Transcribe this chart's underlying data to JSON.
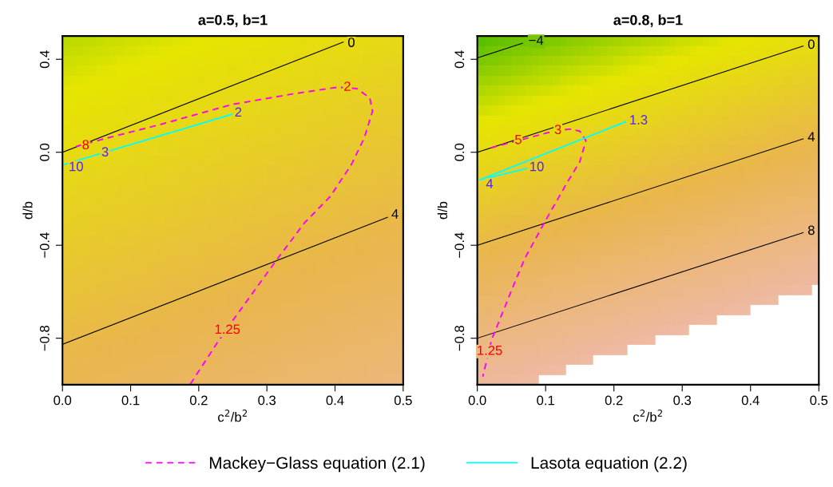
{
  "chart_data": [
    {
      "type": "line",
      "title": "a=0.5, b=1",
      "xlabel": "c$^{2}$/b$^{2}$",
      "ylabel": "d/b",
      "xlim": [
        0,
        0.5
      ],
      "ylim": [
        -1.0,
        0.5
      ],
      "xticks": [
        {
          "value": 0,
          "label": "0.0"
        },
        0.1,
        0.2,
        0.3,
        0.4,
        0.5
      ],
      "yticks": [
        {
          "value": -0.8,
          "label": "−0.8"
        },
        {
          "value": -0.4,
          "label": "−0.4"
        },
        {
          "value": 0,
          "label": "0.0"
        },
        0.4
      ],
      "legend": "bottom",
      "grid": false,
      "series": [
        {
          "color": "#000000",
          "x": [
            0,
            0.412
          ],
          "values": [
            0.0,
            0.474
          ]
        },
        {
          "color": "#000000",
          "x": [
            0,
            0.477
          ],
          "values": [
            -0.826,
            -0.28
          ]
        },
        {
          "name": "Mackey−Glass equation (2.1)",
          "color": "#ff00ff",
          "line_style": "dashed",
          "x": [
            0.02,
            0.064,
            0.143,
            0.248,
            0.338,
            0.404,
            0.432,
            0.451,
            0.455,
            0.443,
            0.424,
            0.393,
            0.355,
            0.314,
            0.252,
            0.229,
            0.187
          ],
          "values": [
            0.025,
            0.06,
            0.119,
            0.205,
            0.251,
            0.28,
            0.274,
            0.234,
            0.177,
            0.062,
            -0.053,
            -0.19,
            -0.304,
            -0.464,
            -0.715,
            -0.811,
            -1.0
          ]
        },
        {
          "name": "Lasota equation (2.2)",
          "color": "#00ffff",
          "x": [
            0.002,
            0.248
          ],
          "values": [
            -0.053,
            0.163
          ]
        }
      ],
      "annotations": [
        {
          "text": "0",
          "x": 0.424,
          "y": 0.468
        },
        {
          "text": "4",
          "x": 0.488,
          "y": -0.27
        },
        {
          "text": "8",
          "x": 0.034,
          "y": 0.028
        },
        {
          "text": "2",
          "x": 0.418,
          "y": 0.279
        },
        {
          "text": "1.25",
          "x": 0.242,
          "y": -0.766
        },
        {
          "text": "10",
          "x": 0.02,
          "y": -0.066
        },
        {
          "text": "3",
          "x": 0.0625,
          "y": -0.003
        },
        {
          "text": "2",
          "x": 0.258,
          "y": 0.168
        }
      ]
    },
    {
      "type": "line",
      "title": "a=0.8, b=1",
      "xlabel": "c$^{2}$/b$^{2}$",
      "ylabel": "d/b",
      "xlim": [
        0,
        0.5
      ],
      "ylim": [
        -1.0,
        0.5
      ],
      "xticks": [
        {
          "value": 0,
          "label": "0.0"
        },
        0.1,
        0.2,
        0.3,
        0.4,
        0.5
      ],
      "yticks": [
        {
          "value": -0.8,
          "label": "−0.8"
        },
        {
          "value": -0.4,
          "label": "−0.4"
        },
        {
          "value": 0,
          "label": "0.0"
        },
        0.4
      ],
      "legend": "bottom",
      "grid": false,
      "series": [
        {
          "color": "#000000",
          "x": [
            0,
            0.066
          ],
          "values": [
            0.406,
            0.469
          ]
        },
        {
          "color": "#000000",
          "x": [
            0,
            0.477
          ],
          "values": [
            0.0,
            0.457
          ]
        },
        {
          "color": "#000000",
          "x": [
            0,
            0.477
          ],
          "values": [
            -0.4,
            0.058
          ]
        },
        {
          "color": "#000000",
          "x": [
            0,
            0.477
          ],
          "values": [
            -0.8,
            -0.346
          ]
        },
        {
          "name": "Mackey−Glass equation (2.1)",
          "color": "#ff00ff",
          "line_style": "dashed",
          "x": [
            0.02,
            0.045,
            0.104,
            0.135,
            0.15,
            0.159,
            0.15,
            0.131,
            0.1,
            0.07,
            0.057,
            0.021,
            0.008
          ],
          "values": [
            0.019,
            0.039,
            0.085,
            0.1,
            0.091,
            0.05,
            -0.041,
            -0.133,
            -0.293,
            -0.454,
            -0.544,
            -0.806,
            -0.965
          ]
        },
        {
          "name": "Lasota equation (2.2)",
          "color": "#00ffff",
          "x": [
            0.072,
            0.004,
            0.217
          ],
          "values": [
            -0.07,
            -0.118,
            0.131
          ]
        }
      ],
      "annotations": [
        {
          "text": "−4",
          "x": 0.086,
          "y": 0.477
        },
        {
          "text": "0",
          "x": 0.489,
          "y": 0.46
        },
        {
          "text": "4",
          "x": 0.489,
          "y": 0.062
        },
        {
          "text": "8",
          "x": 0.489,
          "y": -0.34
        },
        {
          "text": "5",
          "x": 0.06,
          "y": 0.05
        },
        {
          "text": "3",
          "x": 0.118,
          "y": 0.093
        },
        {
          "text": "1.25",
          "x": 0.018,
          "y": -0.857
        },
        {
          "text": "10",
          "x": 0.087,
          "y": -0.066
        },
        {
          "text": "4",
          "x": 0.018,
          "y": -0.14
        },
        {
          "text": "1.3",
          "x": 0.236,
          "y": 0.135
        }
      ]
    }
  ]
}
